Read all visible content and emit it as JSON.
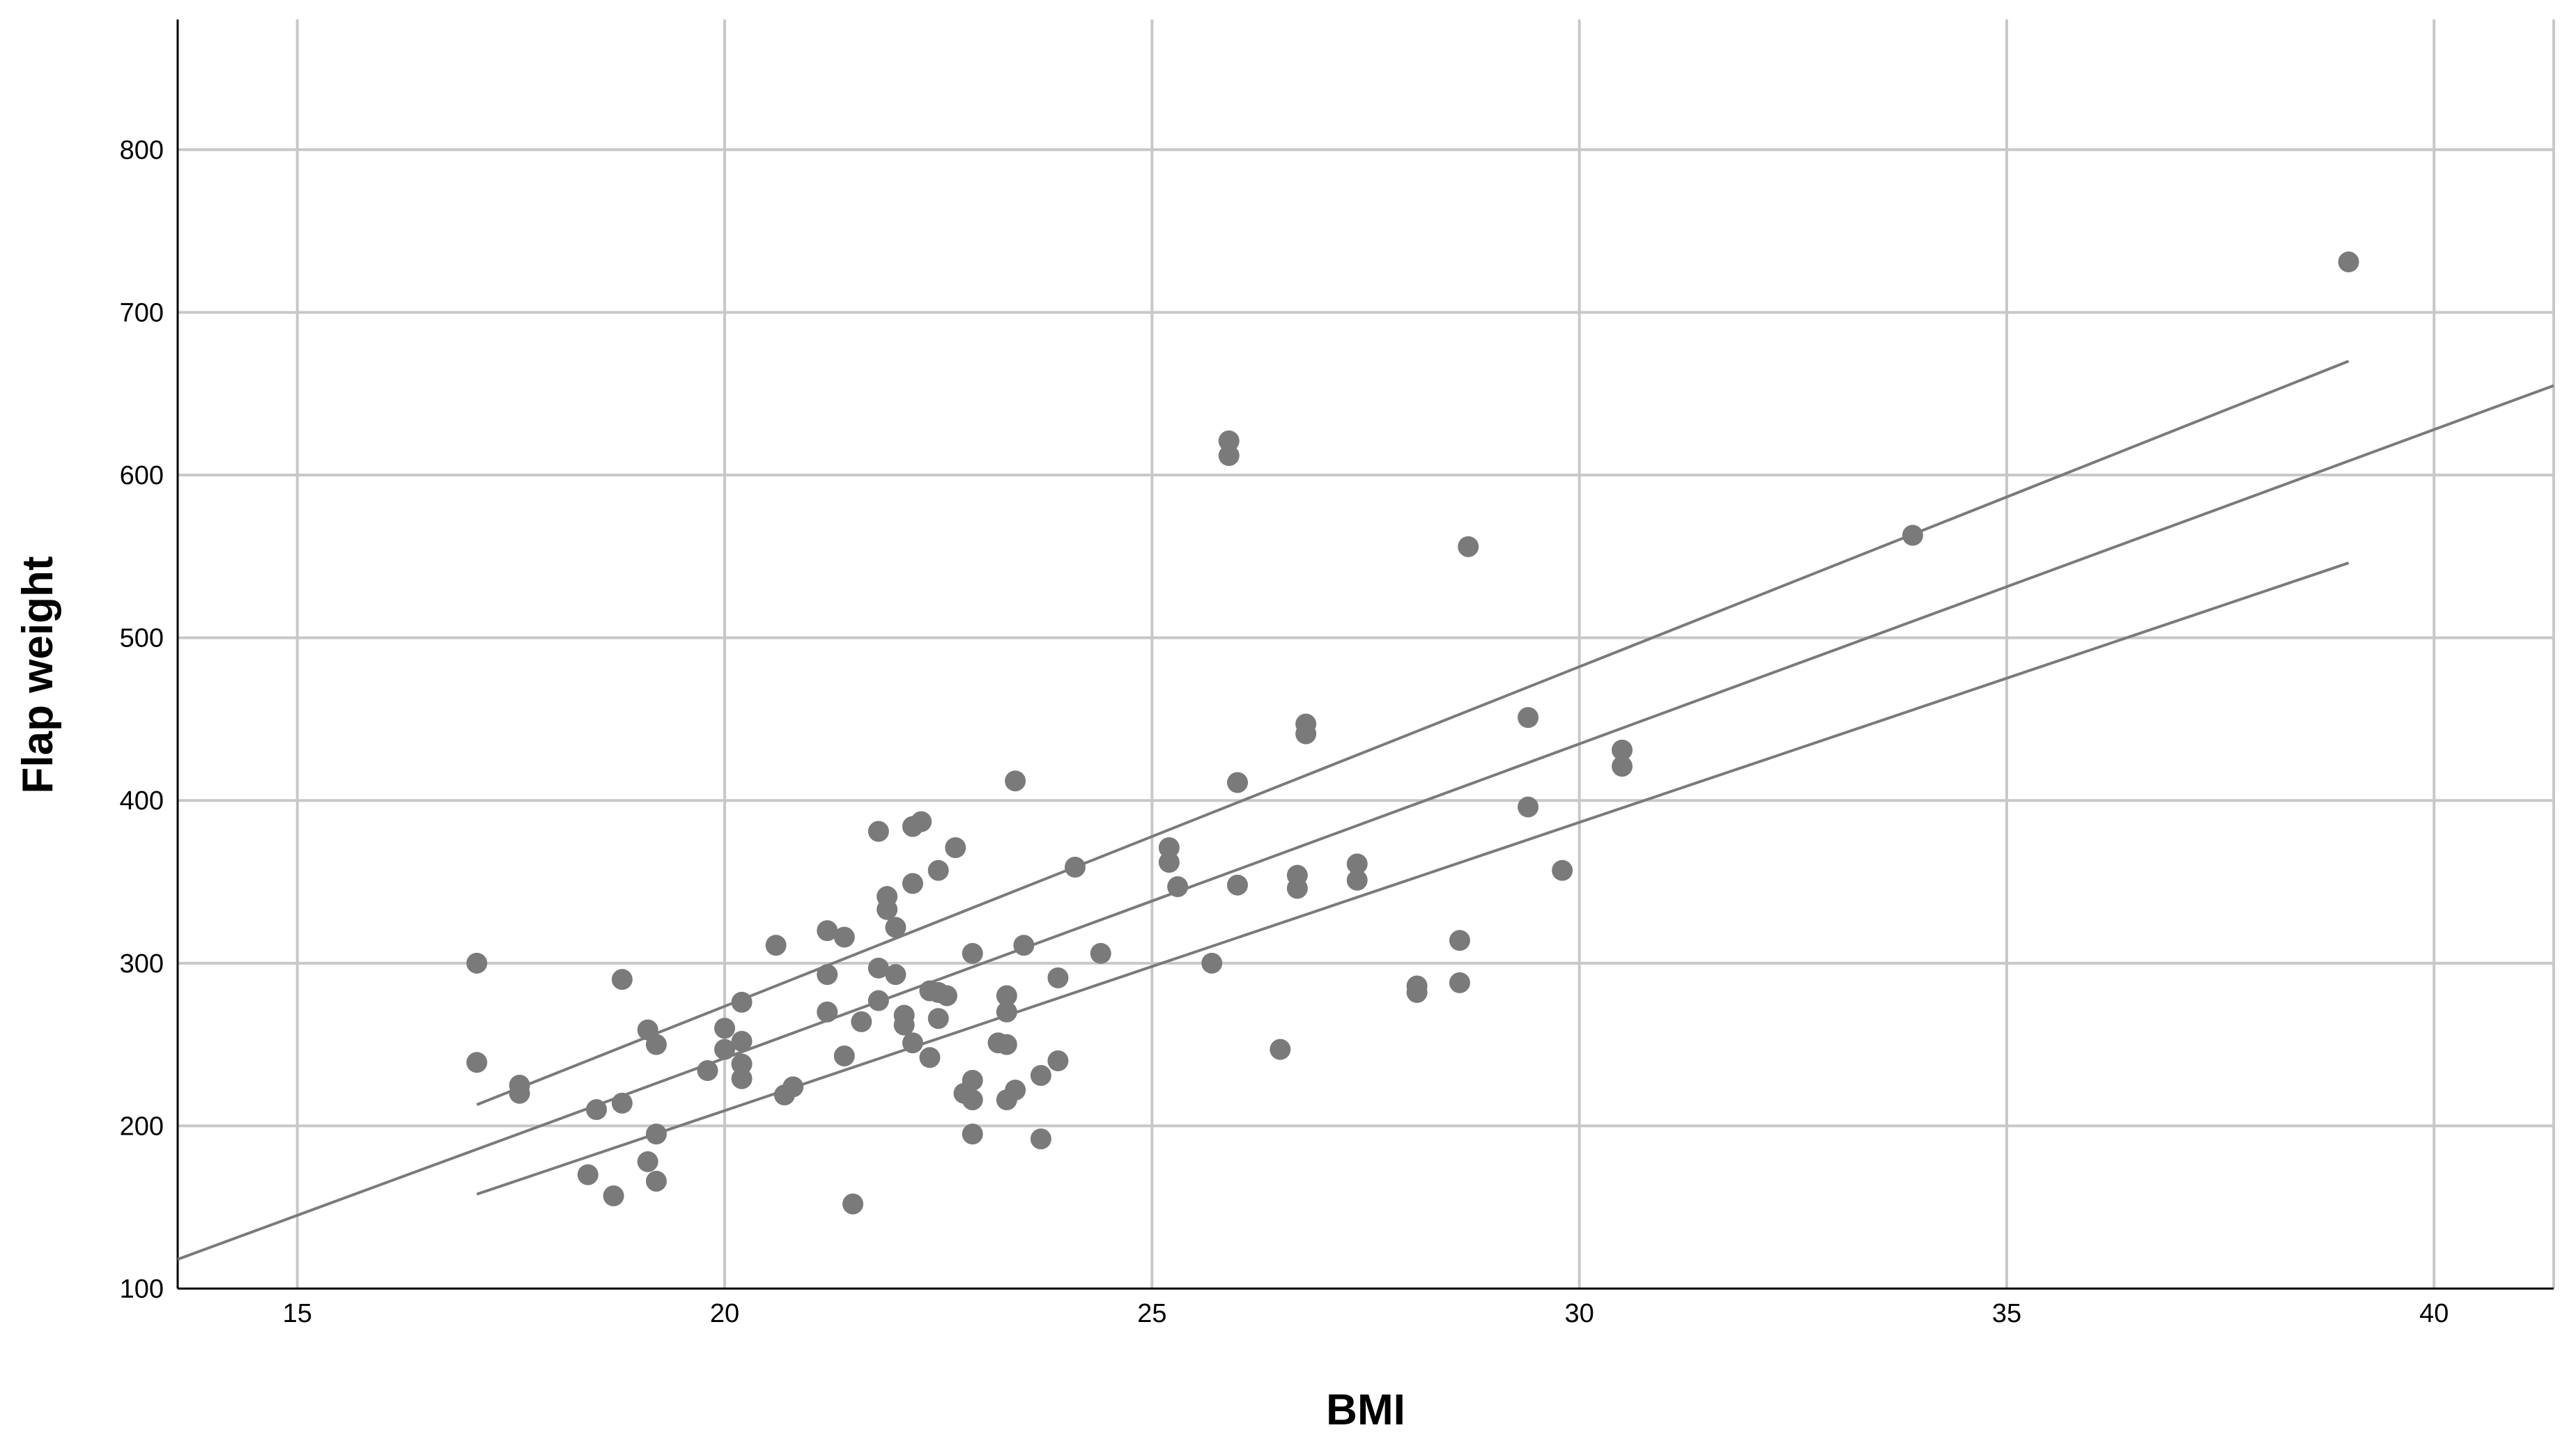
{
  "chart_data": {
    "type": "scatter",
    "title": "",
    "xlabel": "BMI",
    "ylabel": "Flap weight",
    "xlim": [
      13.6,
      41.4
    ],
    "ylim": [
      100,
      880
    ],
    "xticks": [
      15,
      20,
      25,
      30,
      35,
      40
    ],
    "yticks": [
      100,
      200,
      300,
      400,
      500,
      600,
      700,
      800
    ],
    "grid": true,
    "colors": {
      "points": "#7a7a7a",
      "lines": "#7a7a7a",
      "grid": "#c8c8c8",
      "axis": "#000000"
    },
    "points": [
      {
        "x": 17.1,
        "y": 300
      },
      {
        "x": 17.1,
        "y": 239
      },
      {
        "x": 17.6,
        "y": 225
      },
      {
        "x": 17.6,
        "y": 220
      },
      {
        "x": 18.4,
        "y": 170
      },
      {
        "x": 18.5,
        "y": 210
      },
      {
        "x": 18.7,
        "y": 157
      },
      {
        "x": 18.8,
        "y": 214
      },
      {
        "x": 18.8,
        "y": 290
      },
      {
        "x": 19.1,
        "y": 259
      },
      {
        "x": 19.1,
        "y": 178
      },
      {
        "x": 19.2,
        "y": 195
      },
      {
        "x": 19.2,
        "y": 166
      },
      {
        "x": 19.2,
        "y": 250
      },
      {
        "x": 19.8,
        "y": 234
      },
      {
        "x": 20.0,
        "y": 260
      },
      {
        "x": 20.0,
        "y": 247
      },
      {
        "x": 20.2,
        "y": 276
      },
      {
        "x": 20.2,
        "y": 252
      },
      {
        "x": 20.2,
        "y": 238
      },
      {
        "x": 20.2,
        "y": 229
      },
      {
        "x": 20.6,
        "y": 311
      },
      {
        "x": 20.7,
        "y": 219
      },
      {
        "x": 20.8,
        "y": 224
      },
      {
        "x": 21.2,
        "y": 320
      },
      {
        "x": 21.2,
        "y": 293
      },
      {
        "x": 21.2,
        "y": 270
      },
      {
        "x": 21.4,
        "y": 316
      },
      {
        "x": 21.4,
        "y": 243
      },
      {
        "x": 21.5,
        "y": 152
      },
      {
        "x": 21.6,
        "y": 264
      },
      {
        "x": 21.8,
        "y": 381
      },
      {
        "x": 21.8,
        "y": 297
      },
      {
        "x": 21.8,
        "y": 277
      },
      {
        "x": 21.9,
        "y": 341
      },
      {
        "x": 21.9,
        "y": 333
      },
      {
        "x": 22.0,
        "y": 293
      },
      {
        "x": 22.0,
        "y": 322
      },
      {
        "x": 22.1,
        "y": 268
      },
      {
        "x": 22.1,
        "y": 262
      },
      {
        "x": 22.2,
        "y": 384
      },
      {
        "x": 22.2,
        "y": 349
      },
      {
        "x": 22.2,
        "y": 251
      },
      {
        "x": 22.3,
        "y": 387
      },
      {
        "x": 22.4,
        "y": 283
      },
      {
        "x": 22.4,
        "y": 242
      },
      {
        "x": 22.5,
        "y": 357
      },
      {
        "x": 22.5,
        "y": 266
      },
      {
        "x": 22.5,
        "y": 282
      },
      {
        "x": 22.6,
        "y": 280
      },
      {
        "x": 22.7,
        "y": 371
      },
      {
        "x": 22.8,
        "y": 220
      },
      {
        "x": 22.9,
        "y": 228
      },
      {
        "x": 22.9,
        "y": 216
      },
      {
        "x": 22.9,
        "y": 195
      },
      {
        "x": 22.9,
        "y": 306
      },
      {
        "x": 23.2,
        "y": 251
      },
      {
        "x": 23.3,
        "y": 280
      },
      {
        "x": 23.3,
        "y": 270
      },
      {
        "x": 23.3,
        "y": 216
      },
      {
        "x": 23.3,
        "y": 250
      },
      {
        "x": 23.4,
        "y": 412
      },
      {
        "x": 23.4,
        "y": 222
      },
      {
        "x": 23.5,
        "y": 311
      },
      {
        "x": 23.7,
        "y": 231
      },
      {
        "x": 23.7,
        "y": 192
      },
      {
        "x": 23.9,
        "y": 291
      },
      {
        "x": 23.9,
        "y": 240
      },
      {
        "x": 24.1,
        "y": 359
      },
      {
        "x": 24.4,
        "y": 306
      },
      {
        "x": 25.2,
        "y": 371
      },
      {
        "x": 25.2,
        "y": 362
      },
      {
        "x": 25.3,
        "y": 347
      },
      {
        "x": 25.7,
        "y": 300
      },
      {
        "x": 25.9,
        "y": 621
      },
      {
        "x": 25.9,
        "y": 612
      },
      {
        "x": 26.0,
        "y": 411
      },
      {
        "x": 26.0,
        "y": 348
      },
      {
        "x": 26.5,
        "y": 247
      },
      {
        "x": 26.7,
        "y": 354
      },
      {
        "x": 26.7,
        "y": 346
      },
      {
        "x": 26.8,
        "y": 447
      },
      {
        "x": 26.8,
        "y": 441
      },
      {
        "x": 27.4,
        "y": 361
      },
      {
        "x": 27.4,
        "y": 351
      },
      {
        "x": 28.1,
        "y": 286
      },
      {
        "x": 28.1,
        "y": 282
      },
      {
        "x": 28.6,
        "y": 314
      },
      {
        "x": 28.6,
        "y": 288
      },
      {
        "x": 28.7,
        "y": 556
      },
      {
        "x": 29.4,
        "y": 451
      },
      {
        "x": 29.4,
        "y": 396
      },
      {
        "x": 29.8,
        "y": 357
      },
      {
        "x": 30.5,
        "y": 431
      },
      {
        "x": 30.5,
        "y": 421
      },
      {
        "x": 33.9,
        "y": 563
      },
      {
        "x": 39.0,
        "y": 731
      }
    ],
    "fit_line": [
      {
        "x": 13.6,
        "y": 118
      },
      {
        "x": 41.4,
        "y": 655
      }
    ],
    "upper_band": [
      {
        "x": 17.1,
        "y": 213
      },
      {
        "x": 39.0,
        "y": 670
      }
    ],
    "lower_band": [
      {
        "x": 17.1,
        "y": 158
      },
      {
        "x": 39.0,
        "y": 546
      }
    ]
  }
}
